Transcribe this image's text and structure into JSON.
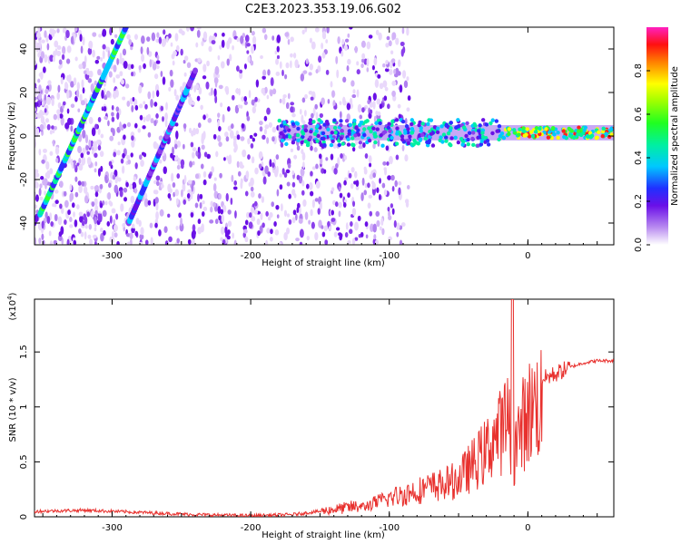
{
  "title": "C2E3.2023.353.19.06.G02",
  "chart_data": [
    {
      "type": "heatmap",
      "xlabel": "Height of straight line (km)",
      "ylabel": "Frequency (Hz)",
      "xlim": [
        -356,
        62
      ],
      "ylim": [
        -50,
        50
      ],
      "xticks": [
        -300,
        -200,
        -100,
        0
      ],
      "yticks": [
        -40,
        -20,
        0,
        20,
        40
      ],
      "colorbar": {
        "label": "Normalized spectral amplitude",
        "range": [
          0,
          1
        ],
        "ticks": [
          0.0,
          0.2,
          0.4,
          0.6,
          0.8
        ]
      },
      "features": {
        "diagonal_trace_1": {
          "start": [
            -352,
            -36
          ],
          "end": [
            -290,
            50
          ]
        },
        "diagonal_trace_2": {
          "start": [
            -288,
            -40
          ],
          "end": [
            -240,
            30
          ]
        },
        "horizontal_trace_frequency_hz": 1.5,
        "horizontal_trace_from_km": -180
      }
    },
    {
      "type": "line",
      "xlabel": "Height of straight line (km)",
      "ylabel": "SNR (10 * v/v)",
      "yscale_label": "(x10",
      "yscale_exp": "4",
      "yscale_close": ")",
      "xlim": [
        -356,
        62
      ],
      "ylim": [
        0,
        1.98
      ],
      "xticks": [
        -300,
        -200,
        -100,
        0
      ],
      "yticks": [
        0.0,
        0.5,
        1.0,
        1.5
      ],
      "color": "#e8312e",
      "series": [
        {
          "x": [
            -356,
            -320,
            -280,
            -240,
            -200,
            -170,
            -150,
            -120,
            -100,
            -80,
            -60,
            -50,
            -40,
            -30,
            -25,
            -20,
            -15,
            -10,
            -5,
            0,
            5,
            10,
            20,
            30,
            40,
            50,
            62
          ],
          "y": [
            0.05,
            0.06,
            0.04,
            0.02,
            0.01,
            0.02,
            0.05,
            0.1,
            0.2,
            0.28,
            0.35,
            0.4,
            0.55,
            0.7,
            0.85,
            0.9,
            1.05,
            0.7,
            0.95,
            1.1,
            1.2,
            1.25,
            1.3,
            1.36,
            1.4,
            1.42,
            1.42
          ]
        }
      ]
    }
  ]
}
